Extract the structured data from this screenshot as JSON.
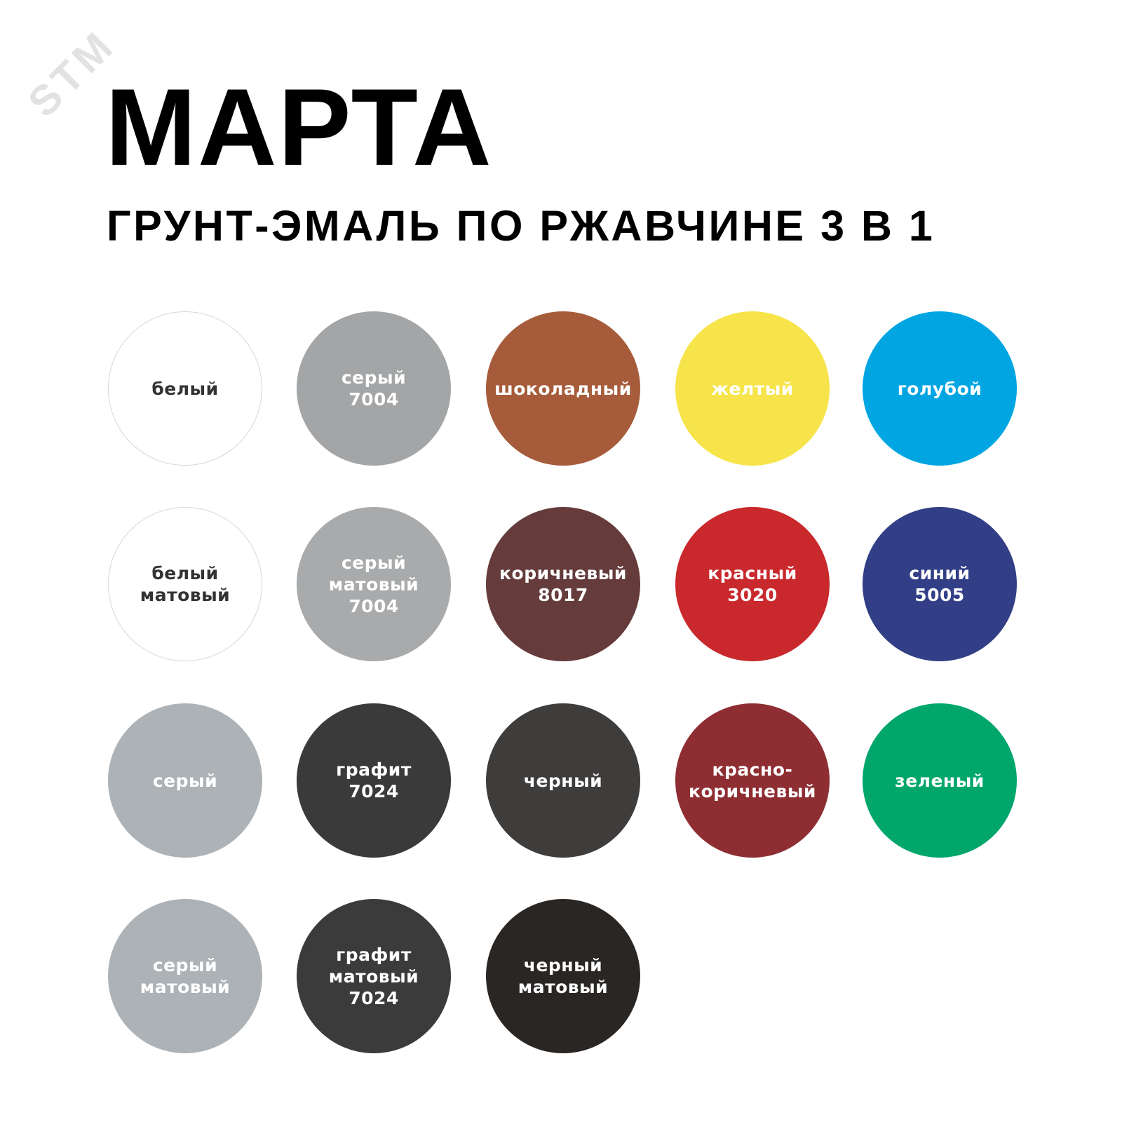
{
  "watermark": "STM",
  "header": {
    "title": "МАРТА",
    "subtitle": "ГРУНТ-ЭМАЛЬ ПО РЖАВЧИНЕ 3 В 1"
  },
  "swatches": [
    {
      "label": "белый",
      "color": "#ffffff",
      "light": true
    },
    {
      "label": "серый\n7004",
      "color": "#a3a5a6"
    },
    {
      "label": "шоколадный",
      "color": "#a65c3a"
    },
    {
      "label": "желтый",
      "color": "#f6e44a"
    },
    {
      "label": "голубой",
      "color": "#00a5e2"
    },
    {
      "label": "белый\nматовый",
      "color": "#ffffff",
      "light": true
    },
    {
      "label": "серый\nматовый\n7004",
      "color": "#a8aaab"
    },
    {
      "label": "коричневый\n8017",
      "color": "#653b3b"
    },
    {
      "label": "красный\n3020",
      "color": "#c9292c"
    },
    {
      "label": "синий\n5005",
      "color": "#323f86"
    },
    {
      "label": "серый",
      "color": "#adb2b6"
    },
    {
      "label": "графит\n7024",
      "color": "#3a3a3a"
    },
    {
      "label": "черный",
      "color": "#3f3c3c"
    },
    {
      "label": "красно-\nкоричневый",
      "color": "#8e2e33"
    },
    {
      "label": "зеленый",
      "color": "#00a66b"
    },
    {
      "label": "серый\nматовый",
      "color": "#adb2b6"
    },
    {
      "label": "графит\nматовый\n7024",
      "color": "#3b3b3b"
    },
    {
      "label": "черный\nматовый",
      "color": "#2a2623"
    }
  ]
}
